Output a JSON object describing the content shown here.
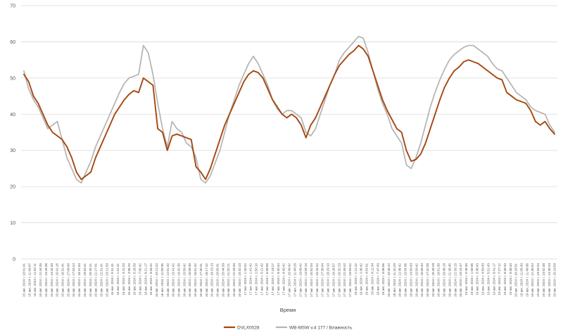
{
  "chart_data": {
    "type": "line",
    "xlabel": "Время",
    "ylabel": "",
    "ylim": [
      0,
      70
    ],
    "yticks": [
      0,
      10,
      20,
      30,
      40,
      50,
      60,
      70
    ],
    "grid": true,
    "legend_position": "bottom",
    "x_tick_labels": [
      "15 авг. 2024 г. 10:01:41",
      "15 авг. 2024 г. 11:09:07",
      "15 авг. 2024 г. 11:52:11",
      "15 авг. 2024 г. 12:44:35",
      "15 авг. 2024 г. 13:26:36",
      "15 авг. 2024 г. 14:34:33",
      "15 авг. 2024 г. 15:41:16",
      "15 авг. 2024 г. 16:31:41",
      "15 авг. 2024 г. 17:09:00",
      "15 авг. 2024 г. 17:53:24",
      "15 авг. 2024 г. 18:41:53",
      "15 авг. 2024 г. 19:53:41",
      "15 авг. 2024 г. 20:45:41",
      "15 авг. 2024 г. 21:27:41",
      "15 авг. 2024 г. 22:31:41",
      "15 авг. 2024 г. 23:21:50",
      "16 авг. 2024 г. 0:31:41",
      "16 авг. 2024 г. 1:31:41",
      "16 авг. 2024 г. 3:41:20",
      "16 авг. 2024 г. 4:06:20",
      "16 авг. 2024 г. 5:28:39",
      "16 авг. 2024 г. 7:05:42",
      "16 авг. 2024 г. 8:21:17",
      "16 авг. 2024 г. 9:33:42",
      "16 авг. 2024 г. 10:21:42",
      "16 авг. 2024 г. 11:00:35",
      "16 авг. 2024 г. 12:01:42",
      "16 авг. 2024 г. 13:41:42",
      "16 авг. 2024 г. 14:42:35",
      "16 авг. 2024 г. 15:59:42",
      "16 авг. 2024 г. 16:09:48",
      "16 авг. 2024 г. 16:51:42",
      "16 авг. 2024 г. 17:30:31",
      "16 авг. 2024 г. 18:17:42",
      "16 авг. 2024 г. 19:23:13",
      "16 авг. 2024 г. 20:00:31",
      "16 авг. 2024 г. 20:44:39",
      "16 авг. 2024 г. 21:32:21",
      "16 авг. 2024 г. 22:28:33",
      "16 авг. 2024 г. 23:32:23",
      "17 авг. 2024 г. 1:33:42",
      "17 авг. 2024 г. 1:41:42",
      "17 авг. 2024 г. 2:50:10",
      "17 авг. 2024 г. 5:21:42",
      "17 авг. 2024 г. 6:38:58",
      "17 авг. 2024 г. 7:18:27",
      "17 авг. 2024 г. 8:40:44",
      "17 авг. 2024 г. 9:43:42",
      "17 авг. 2024 г. 10:49:42",
      "17 авг. 2024 г. 11:49:28",
      "17 авг. 2024 г. 13:09:42",
      "17 авг. 2024 г. 14:09:10",
      "17 авг. 2024 г. 15:52:04",
      "17 авг. 2024 г. 16:44:32",
      "17 авг. 2024 г. 17:38:04",
      "17 авг. 2024 г. 18:29:10",
      "17 авг. 2024 г. 19:28:57",
      "17 авг. 2024 г. 20:32:29",
      "17 авг. 2024 г. 22:49:42",
      "17 авг. 2024 г. 23:59:42",
      "18 авг. 2024 г. 1:21:42",
      "18 авг. 2024 г. 2:36:42",
      "18 авг. 2024 г. 4:53:01",
      "18 авг. 2024 г. 6:11:34",
      "18 авг. 2024 г. 7:47:43",
      "18 авг. 2024 г. 9:06:06",
      "18 авг. 2024 г. 10:36:42",
      "18 авг. 2024 г. 11:42:29",
      "18 авг. 2024 г. 12:36:42",
      "18 авг. 2024 г. 13:54:06",
      "18 авг. 2024 г. 14:59:43",
      "18 авг. 2024 г. 15:50:42",
      "18 авг. 2024 г. 16:56:43",
      "18 авг. 2024 г. 17:32:09",
      "18 авг. 2024 г. 18:49:28",
      "18 авг. 2024 г. 19:51:39",
      "18 авг. 2024 г. 20:48:18",
      "18 авг. 2024 г. 21:38:45",
      "18 авг. 2024 г. 22:33:15",
      "18 авг. 2024 г. 23:24:47",
      "19 авг. 2024 г. 0:48:30",
      "19 авг. 2024 г. 1:59:06",
      "19 авг. 2024 г. 3:36:43",
      "19 авг. 2024 г. 4:59:43",
      "19 авг. 2024 г. 5:51:43",
      "19 авг. 2024 г. 6:41:17",
      "19 авг. 2024 г. 7:27:12",
      "19 авг. 2024 г. 8:39:43",
      "19 авг. 2024 г. 9:38:43",
      "19 авг. 2024 г. 10:28:51",
      "19 авг. 2024 г. 11:05:43",
      "19 авг. 2024 г. 11:49:36",
      "19 авг. 2024 г. 12:36:54",
      "19 авг. 2024 г. 13:33:43",
      "19 авг. 2024 г. 13:52:48",
      "19 авг. 2024 г. 14:35:43",
      "19 авг. 2024 г. 15:19:50"
    ],
    "series": [
      {
        "name": "DVLX0028",
        "color": "#a6470f",
        "points": [
          [
            0,
            51
          ],
          [
            1,
            49
          ],
          [
            2,
            45
          ],
          [
            3,
            43
          ],
          [
            4,
            40
          ],
          [
            5,
            37
          ],
          [
            6,
            35
          ],
          [
            7,
            34
          ],
          [
            8,
            33
          ],
          [
            9,
            31
          ],
          [
            10,
            28
          ],
          [
            11,
            24
          ],
          [
            12,
            22
          ],
          [
            13,
            23
          ],
          [
            14,
            24
          ],
          [
            15,
            28
          ],
          [
            16,
            31
          ],
          [
            17,
            34
          ],
          [
            18,
            37
          ],
          [
            19,
            40
          ],
          [
            20,
            42
          ],
          [
            21,
            44
          ],
          [
            22,
            45.5
          ],
          [
            23,
            46.5
          ],
          [
            24,
            46
          ],
          [
            25,
            50
          ],
          [
            26,
            49
          ],
          [
            27,
            48
          ],
          [
            28,
            36
          ],
          [
            29,
            35
          ],
          [
            30,
            30
          ],
          [
            31,
            34
          ],
          [
            32,
            34.5
          ],
          [
            33,
            34
          ],
          [
            34,
            33.5
          ],
          [
            35,
            33
          ],
          [
            36,
            25.5
          ],
          [
            37,
            24
          ],
          [
            38,
            22
          ],
          [
            39,
            25
          ],
          [
            40,
            29
          ],
          [
            41,
            33
          ],
          [
            42,
            37
          ],
          [
            43,
            40
          ],
          [
            44,
            43
          ],
          [
            45,
            46
          ],
          [
            46,
            49
          ],
          [
            47,
            51
          ],
          [
            48,
            52
          ],
          [
            49,
            51.5
          ],
          [
            50,
            50
          ],
          [
            51,
            47
          ],
          [
            52,
            44
          ],
          [
            53,
            42
          ],
          [
            54,
            40
          ],
          [
            55,
            39
          ],
          [
            56,
            40
          ],
          [
            57,
            39
          ],
          [
            58,
            37
          ],
          [
            59,
            33.5
          ],
          [
            60,
            37
          ],
          [
            61,
            39
          ],
          [
            62,
            42
          ],
          [
            63,
            45
          ],
          [
            64,
            48
          ],
          [
            65,
            51
          ],
          [
            66,
            53.5
          ],
          [
            67,
            55
          ],
          [
            68,
            56.5
          ],
          [
            69,
            57.5
          ],
          [
            70,
            59
          ],
          [
            71,
            58
          ],
          [
            72,
            56
          ],
          [
            73,
            52
          ],
          [
            74,
            48
          ],
          [
            75,
            44
          ],
          [
            76,
            41
          ],
          [
            77,
            38.5
          ],
          [
            78,
            36
          ],
          [
            79,
            35
          ],
          [
            80,
            30
          ],
          [
            81,
            27
          ],
          [
            82,
            27.5
          ],
          [
            83,
            29
          ],
          [
            84,
            32
          ],
          [
            85,
            36
          ],
          [
            86,
            40
          ],
          [
            87,
            44
          ],
          [
            88,
            47.5
          ],
          [
            89,
            50
          ],
          [
            90,
            52
          ],
          [
            91,
            53
          ],
          [
            92,
            54.5
          ],
          [
            93,
            55
          ],
          [
            94,
            54.5
          ],
          [
            95,
            54
          ],
          [
            96,
            53
          ],
          [
            97,
            52
          ],
          [
            98,
            51
          ],
          [
            99,
            50
          ],
          [
            100,
            49.5
          ],
          [
            101,
            46
          ],
          [
            102,
            45
          ],
          [
            103,
            44
          ],
          [
            104,
            43.5
          ],
          [
            105,
            43
          ],
          [
            106,
            41
          ],
          [
            107,
            38
          ],
          [
            108,
            37
          ],
          [
            109,
            38
          ],
          [
            110,
            36
          ],
          [
            111,
            34.5
          ]
        ]
      },
      {
        "name": "WB-MSW v.4 177 / Влажность",
        "color": "#b3b3b3",
        "points": [
          [
            0,
            52
          ],
          [
            1,
            47
          ],
          [
            2,
            44
          ],
          [
            3,
            42
          ],
          [
            4,
            39
          ],
          [
            5,
            36
          ],
          [
            6,
            37
          ],
          [
            7,
            38
          ],
          [
            8,
            33
          ],
          [
            9,
            28
          ],
          [
            10,
            25
          ],
          [
            11,
            22
          ],
          [
            12,
            21
          ],
          [
            13,
            24
          ],
          [
            14,
            27
          ],
          [
            15,
            31
          ],
          [
            16,
            34
          ],
          [
            17,
            37
          ],
          [
            18,
            40
          ],
          [
            19,
            43
          ],
          [
            20,
            46
          ],
          [
            21,
            48.5
          ],
          [
            22,
            50
          ],
          [
            23,
            50.5
          ],
          [
            24,
            51
          ],
          [
            25,
            59
          ],
          [
            26,
            57
          ],
          [
            27,
            51
          ],
          [
            28,
            43
          ],
          [
            29,
            36
          ],
          [
            30,
            31
          ],
          [
            31,
            38
          ],
          [
            32,
            36
          ],
          [
            33,
            35
          ],
          [
            34,
            32
          ],
          [
            35,
            31
          ],
          [
            36,
            28
          ],
          [
            37,
            22
          ],
          [
            38,
            21
          ],
          [
            39,
            23
          ],
          [
            40,
            26.5
          ],
          [
            41,
            30
          ],
          [
            42,
            35
          ],
          [
            43,
            40
          ],
          [
            44,
            44
          ],
          [
            45,
            48
          ],
          [
            46,
            51
          ],
          [
            47,
            54
          ],
          [
            48,
            56
          ],
          [
            49,
            54
          ],
          [
            50,
            51
          ],
          [
            51,
            48
          ],
          [
            52,
            44
          ],
          [
            53,
            41.5
          ],
          [
            54,
            40
          ],
          [
            55,
            41
          ],
          [
            56,
            41
          ],
          [
            57,
            40
          ],
          [
            58,
            39
          ],
          [
            59,
            35
          ],
          [
            60,
            34
          ],
          [
            61,
            36
          ],
          [
            62,
            40
          ],
          [
            63,
            44
          ],
          [
            64,
            48
          ],
          [
            65,
            51
          ],
          [
            66,
            55
          ],
          [
            67,
            57
          ],
          [
            68,
            58.5
          ],
          [
            69,
            60
          ],
          [
            70,
            61.5
          ],
          [
            71,
            61
          ],
          [
            72,
            57
          ],
          [
            73,
            52
          ],
          [
            74,
            47
          ],
          [
            75,
            43
          ],
          [
            76,
            40
          ],
          [
            77,
            36
          ],
          [
            78,
            34
          ],
          [
            79,
            32
          ],
          [
            80,
            26
          ],
          [
            81,
            25
          ],
          [
            82,
            28
          ],
          [
            83,
            32
          ],
          [
            84,
            37
          ],
          [
            85,
            42
          ],
          [
            86,
            46
          ],
          [
            87,
            49.5
          ],
          [
            88,
            52.5
          ],
          [
            89,
            55
          ],
          [
            90,
            56.5
          ],
          [
            91,
            57.5
          ],
          [
            92,
            58.5
          ],
          [
            93,
            59
          ],
          [
            94,
            59
          ],
          [
            95,
            58
          ],
          [
            96,
            57
          ],
          [
            97,
            56
          ],
          [
            98,
            54
          ],
          [
            99,
            52.5
          ],
          [
            100,
            52
          ],
          [
            101,
            50
          ],
          [
            102,
            48
          ],
          [
            103,
            46
          ],
          [
            104,
            45
          ],
          [
            105,
            44
          ],
          [
            106,
            42
          ],
          [
            107,
            41
          ],
          [
            108,
            40.5
          ],
          [
            109,
            40
          ],
          [
            110,
            37
          ],
          [
            111,
            35
          ]
        ]
      }
    ]
  }
}
